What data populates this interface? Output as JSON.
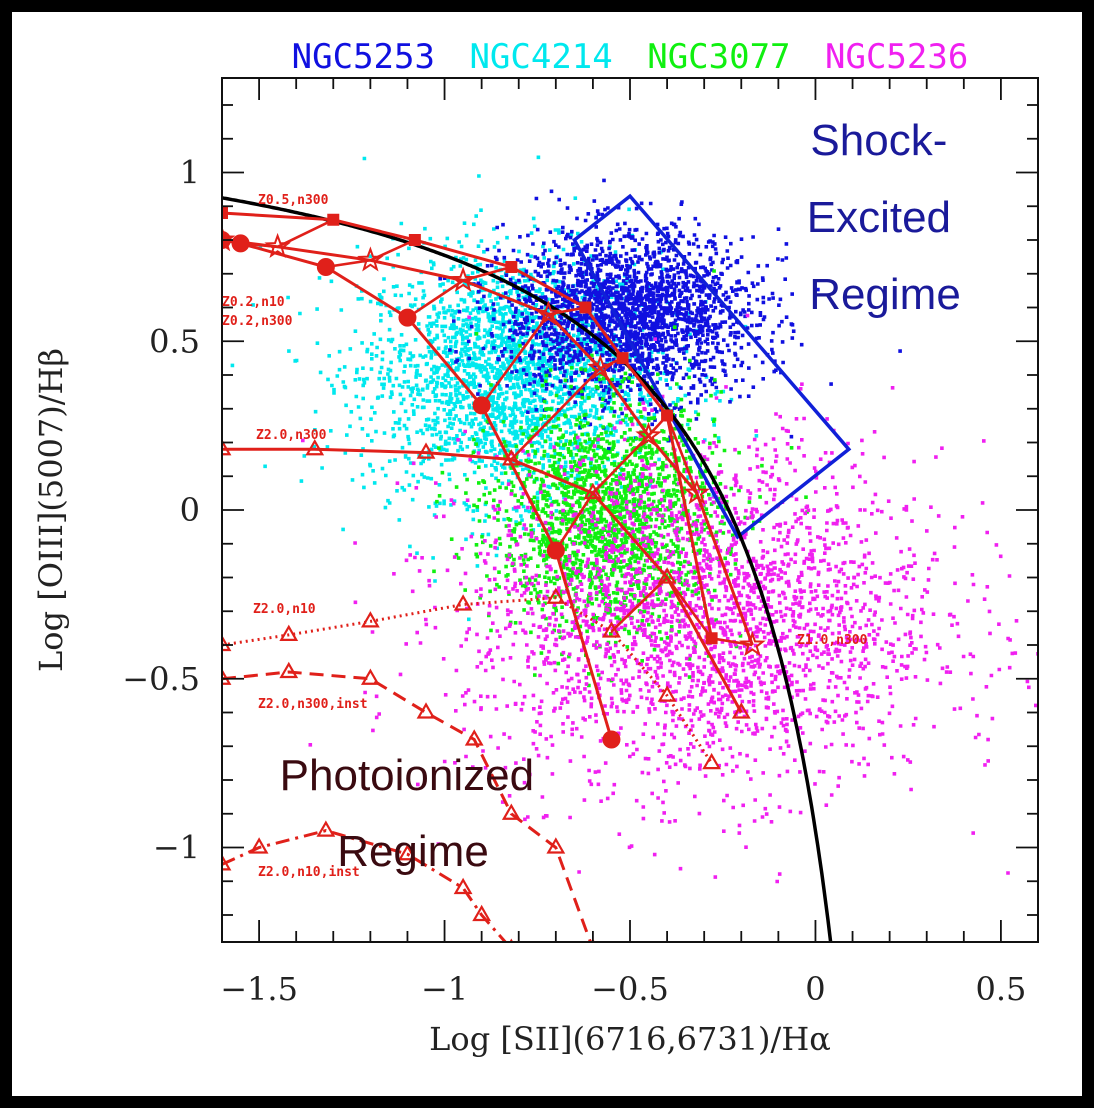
{
  "chart_data": {
    "type": "scatter",
    "xlabel": "Log [SII](6716,6731)/Hα",
    "ylabel": "Log [OIII](5007)/Hβ",
    "xlim": [
      -1.6,
      0.6
    ],
    "ylim": [
      -1.28,
      1.28
    ],
    "x_ticks": [
      -1.5,
      -1,
      -0.5,
      0,
      0.5
    ],
    "x_tick_labels": [
      "−1.5",
      "−1",
      "−0.5",
      "0",
      "0.5"
    ],
    "y_ticks": [
      -1,
      -0.5,
      0,
      0.5,
      1
    ],
    "y_tick_labels": [
      "−1",
      "−0.5",
      "0",
      "0.5",
      "1"
    ],
    "legend_placement": "top",
    "series": [
      {
        "name": "NGC5253",
        "color": "#1010e0",
        "cloud": {
          "center": [
            -0.5,
            0.58
          ],
          "spread": [
            0.17,
            0.12
          ],
          "count": 2200
        }
      },
      {
        "name": "NGC4214",
        "color": "#00e8ee",
        "cloud": {
          "center": [
            -0.82,
            0.4
          ],
          "spread": [
            0.2,
            0.18
          ],
          "count": 2400
        }
      },
      {
        "name": "NGC3077",
        "color": "#10f010",
        "cloud": {
          "center": [
            -0.56,
            -0.02
          ],
          "spread": [
            0.15,
            0.17
          ],
          "count": 1800
        }
      },
      {
        "name": "NGC5236",
        "color": "#f020f0",
        "cloud": {
          "center": [
            -0.3,
            -0.32
          ],
          "spread": [
            0.32,
            0.25
          ],
          "count": 2600
        }
      }
    ],
    "region_box": {
      "color": "#1020d8",
      "corners": [
        [
          -0.65,
          0.8
        ],
        [
          -0.5,
          0.93
        ],
        [
          0.09,
          0.18
        ],
        [
          -0.21,
          -0.08
        ]
      ]
    },
    "demarcation_curve": {
      "color": "#000000",
      "equation": "y = 0.72/(x - 0.32) + 1.30",
      "x_range": [
        -1.6,
        0.05
      ]
    },
    "model_tracks": [
      {
        "label": "Z0.5,n300",
        "style": "solid",
        "marker": "square",
        "points": [
          [
            -1.6,
            0.88
          ],
          [
            -1.3,
            0.86
          ],
          [
            -1.08,
            0.8
          ],
          [
            -0.82,
            0.72
          ],
          [
            -0.62,
            0.6
          ],
          [
            -0.52,
            0.45
          ],
          [
            -0.4,
            0.28
          ],
          [
            -0.28,
            -0.38
          ]
        ]
      },
      {
        "label": "Z0.2,n10",
        "style": "solid",
        "marker": "star",
        "points": [
          [
            -1.6,
            0.8
          ],
          [
            -1.45,
            0.78
          ],
          [
            -1.2,
            0.74
          ],
          [
            -0.95,
            0.68
          ],
          [
            -0.72,
            0.58
          ],
          [
            -0.58,
            0.42
          ],
          [
            -0.45,
            0.22
          ],
          [
            -0.32,
            0.05
          ],
          [
            -0.17,
            -0.4
          ]
        ]
      },
      {
        "label": "Z0.2,n300",
        "style": "solid",
        "marker": "circle",
        "points": [
          [
            -1.6,
            0.8
          ],
          [
            -1.55,
            0.79
          ],
          [
            -1.32,
            0.72
          ],
          [
            -1.1,
            0.57
          ],
          [
            -0.9,
            0.31
          ],
          [
            -0.7,
            -0.12
          ],
          [
            -0.55,
            -0.68
          ]
        ]
      },
      {
        "label": "Z2.0,n300",
        "style": "solid",
        "marker": "triangle",
        "points": [
          [
            -1.6,
            0.18
          ],
          [
            -1.35,
            0.18
          ],
          [
            -1.05,
            0.17
          ],
          [
            -0.82,
            0.15
          ],
          [
            -0.6,
            0.05
          ],
          [
            -0.4,
            -0.2
          ],
          [
            -0.2,
            -0.6
          ]
        ]
      },
      {
        "label": "Z2.0,n10",
        "style": "dotted",
        "marker": "triangle",
        "points": [
          [
            -1.6,
            -0.4
          ],
          [
            -1.42,
            -0.37
          ],
          [
            -1.2,
            -0.33
          ],
          [
            -0.95,
            -0.28
          ],
          [
            -0.7,
            -0.26
          ],
          [
            -0.55,
            -0.36
          ],
          [
            -0.4,
            -0.55
          ],
          [
            -0.28,
            -0.75
          ]
        ]
      },
      {
        "label": "Z2.0,n300,inst",
        "style": "dashed",
        "marker": "triangle",
        "points": [
          [
            -1.6,
            -0.5
          ],
          [
            -1.42,
            -0.48
          ],
          [
            -1.2,
            -0.5
          ],
          [
            -1.05,
            -0.6
          ],
          [
            -0.92,
            -0.68
          ],
          [
            -0.82,
            -0.9
          ],
          [
            -0.7,
            -1.0
          ],
          [
            -0.6,
            -1.3
          ]
        ]
      },
      {
        "label": "Z2.0,n10,inst",
        "style": "dashdot",
        "marker": "triangle",
        "points": [
          [
            -1.6,
            -1.05
          ],
          [
            -1.5,
            -1.0
          ],
          [
            -1.32,
            -0.95
          ],
          [
            -1.1,
            -1.02
          ],
          [
            -0.95,
            -1.12
          ],
          [
            -0.9,
            -1.2
          ],
          [
            -0.82,
            -1.3
          ]
        ]
      },
      {
        "label": "Z1.0,n300",
        "style": "solid",
        "marker": "none",
        "points": []
      }
    ],
    "model_connectors": [
      [
        [
          -1.55,
          0.79
        ],
        [
          -1.45,
          0.78
        ],
        [
          -1.3,
          0.86
        ]
      ],
      [
        [
          -1.32,
          0.72
        ],
        [
          -1.2,
          0.74
        ],
        [
          -1.08,
          0.8
        ]
      ],
      [
        [
          -1.1,
          0.57
        ],
        [
          -0.95,
          0.68
        ],
        [
          -0.82,
          0.72
        ]
      ],
      [
        [
          -0.9,
          0.31
        ],
        [
          -0.72,
          0.58
        ],
        [
          -0.62,
          0.6
        ]
      ],
      [
        [
          -0.82,
          0.15
        ],
        [
          -0.58,
          0.42
        ],
        [
          -0.52,
          0.45
        ]
      ],
      [
        [
          -0.7,
          -0.12
        ],
        [
          -0.6,
          0.05
        ],
        [
          -0.45,
          0.22
        ],
        [
          -0.4,
          0.28
        ],
        [
          -0.32,
          0.05
        ]
      ],
      [
        [
          -0.55,
          -0.36
        ],
        [
          -0.4,
          -0.2
        ],
        [
          -0.28,
          -0.38
        ],
        [
          -0.17,
          -0.4
        ]
      ]
    ],
    "annotations": [
      {
        "text": "Shock-\nExcited\nRegime",
        "color": "#1a1a9a"
      },
      {
        "text": "Photoionized\nRegime",
        "color": "#3a0a10"
      }
    ]
  },
  "colors": {
    "background": "#000000",
    "plot_area": "#ffffff",
    "model_red": "#e0201a"
  }
}
